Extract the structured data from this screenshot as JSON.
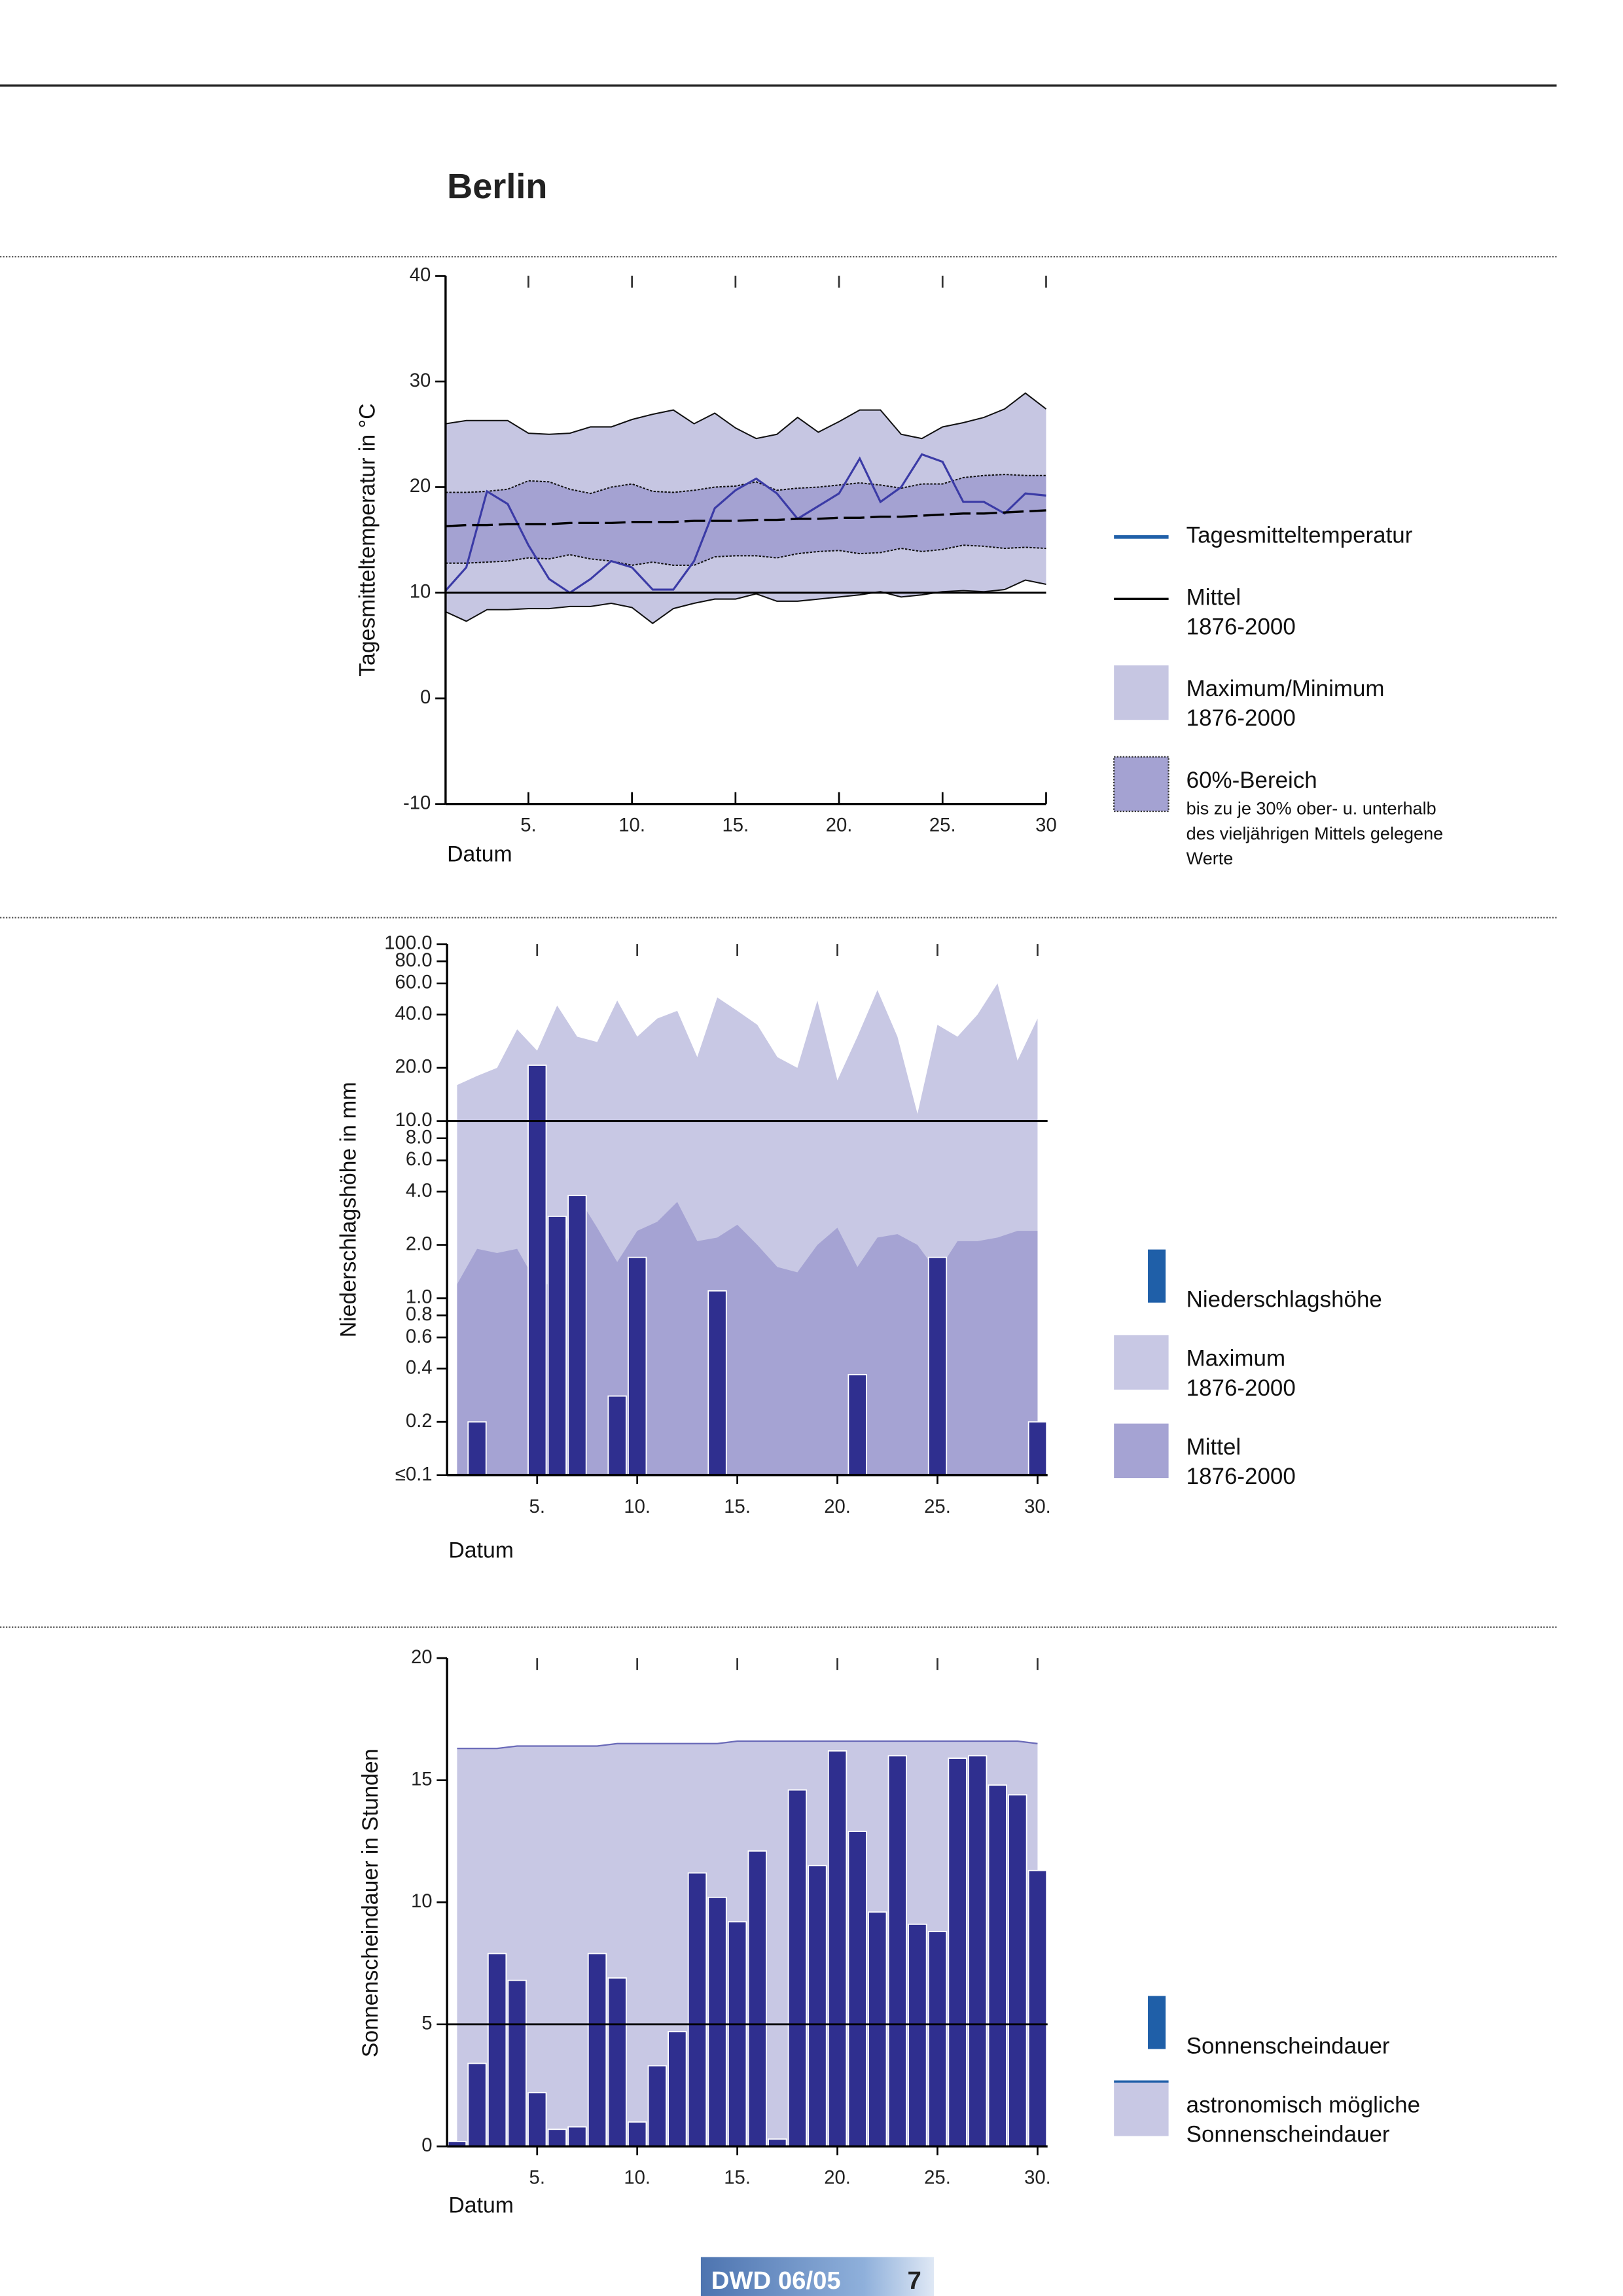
{
  "title": "Berlin",
  "footer": {
    "label": "DWD 06/05",
    "page": "7"
  },
  "chart_data": [
    {
      "type": "line",
      "ylabel": "Tagesmitteltemperatur in °C",
      "xlabel": "Datum",
      "x": [
        1,
        2,
        3,
        4,
        5,
        6,
        7,
        8,
        9,
        10,
        11,
        12,
        13,
        14,
        15,
        16,
        17,
        18,
        19,
        20,
        21,
        22,
        23,
        24,
        25,
        26,
        27,
        28,
        29,
        30
      ],
      "xlim": [
        1,
        30
      ],
      "xticks": [
        {
          "value": 5,
          "label": "5."
        },
        {
          "value": 10,
          "label": "10."
        },
        {
          "value": 15,
          "label": "15."
        },
        {
          "value": 20,
          "label": "20."
        },
        {
          "value": 25,
          "label": "25."
        },
        30
      ],
      "ylim": [
        -10,
        40
      ],
      "yticks": [
        -10,
        0,
        10,
        20,
        30,
        40
      ],
      "hline": 10,
      "series": [
        {
          "name": "Tagesmitteltemperatur",
          "style": "line",
          "color": "#3b3ba6",
          "values": [
            10.2,
            12.4,
            19.6,
            18.4,
            14.5,
            11.3,
            10.0,
            11.3,
            13.0,
            12.4,
            10.3,
            10.3,
            13.0,
            18.0,
            19.7,
            20.8,
            19.4,
            17.0,
            18.2,
            19.4,
            22.7,
            18.6,
            20.0,
            23.1,
            22.4,
            18.6,
            18.6,
            17.5,
            19.4,
            19.2
          ]
        },
        {
          "name": "Mittel\n1876-2000",
          "style": "line",
          "color": "#000000",
          "values": [
            16.3,
            16.4,
            16.4,
            16.5,
            16.5,
            16.5,
            16.6,
            16.6,
            16.6,
            16.7,
            16.7,
            16.7,
            16.8,
            16.8,
            16.8,
            16.9,
            16.9,
            17.0,
            17.0,
            17.1,
            17.1,
            17.2,
            17.2,
            17.3,
            17.4,
            17.5,
            17.5,
            17.6,
            17.7,
            17.8
          ]
        },
        {
          "name": "Maximum/Minimum\n1876-2000",
          "style": "band",
          "color": "#c6c6e2",
          "upper": [
            26.0,
            26.3,
            26.3,
            26.3,
            25.1,
            25.0,
            25.1,
            25.7,
            25.7,
            26.4,
            26.9,
            27.3,
            26.0,
            27.0,
            25.6,
            24.6,
            25.0,
            26.6,
            25.2,
            26.2,
            27.3,
            27.3,
            25.0,
            24.6,
            25.7,
            26.1,
            26.6,
            27.4,
            28.9,
            27.4
          ],
          "lower": [
            8.2,
            7.3,
            8.4,
            8.4,
            8.5,
            8.5,
            8.7,
            8.7,
            9.0,
            8.6,
            7.1,
            8.5,
            9.0,
            9.4,
            9.4,
            9.9,
            9.2,
            9.2,
            9.4,
            9.6,
            9.8,
            10.1,
            9.6,
            9.8,
            10.1,
            10.2,
            10.1,
            10.3,
            11.2,
            10.8
          ]
        },
        {
          "name": "60%-Bereich",
          "note": "bis zu je 30% ober- u. unterhalb\ndes vieljährigen Mittels gelegene\nWerte",
          "style": "band",
          "color": "#a4a2d2",
          "upper": [
            19.5,
            19.5,
            19.6,
            19.8,
            20.6,
            20.5,
            19.8,
            19.4,
            20.0,
            20.3,
            19.6,
            19.5,
            19.7,
            20.0,
            20.1,
            20.5,
            19.7,
            19.9,
            20.0,
            20.2,
            20.4,
            20.2,
            19.9,
            20.3,
            20.3,
            20.9,
            21.1,
            21.2,
            21.1,
            21.1
          ],
          "lower": [
            12.8,
            12.8,
            12.9,
            13.0,
            13.3,
            13.2,
            13.6,
            13.2,
            13.0,
            12.6,
            12.9,
            12.6,
            12.6,
            13.4,
            13.5,
            13.5,
            13.3,
            13.7,
            13.9,
            14.0,
            13.7,
            13.8,
            14.2,
            13.9,
            14.1,
            14.5,
            14.4,
            14.2,
            14.3,
            14.2
          ]
        }
      ]
    },
    {
      "type": "bar",
      "log": true,
      "ylabel": "Niederschlagshöhe in mm",
      "xlabel": "Datum",
      "categories": [
        null,
        null,
        null,
        null,
        "5.",
        null,
        null,
        null,
        null,
        "10.",
        null,
        null,
        null,
        null,
        "15.",
        null,
        null,
        null,
        null,
        "20.",
        null,
        null,
        null,
        null,
        "25.",
        null,
        null,
        null,
        null,
        "30."
      ],
      "ylim": [
        0.1,
        100
      ],
      "yticks": [
        {
          "value": 100,
          "label": "100.0"
        },
        {
          "value": 80,
          "label": "80.0"
        },
        {
          "value": 60,
          "label": "60.0"
        },
        {
          "value": 40,
          "label": "40.0"
        },
        {
          "value": 20,
          "label": "20.0"
        },
        {
          "value": 10,
          "label": "10.0"
        },
        {
          "value": 8,
          "label": "8.0"
        },
        {
          "value": 6,
          "label": "6.0"
        },
        {
          "value": 4,
          "label": "4.0"
        },
        {
          "value": 2,
          "label": "2.0"
        },
        {
          "value": 1,
          "label": "1.0"
        },
        0.8,
        0.6,
        0.4,
        0.2,
        {
          "value": 0.1,
          "label": "≤0.1"
        }
      ],
      "hline": 10,
      "series": [
        {
          "name": "Niederschlagshöhe",
          "style": "bar",
          "color": "#2f2f8f",
          "values": [
            0,
            0.2,
            0,
            0,
            20.7,
            2.9,
            3.8,
            0,
            0.28,
            1.7,
            0,
            0,
            0,
            1.1,
            0,
            0,
            0,
            0,
            0,
            0,
            0.37,
            0,
            0,
            0,
            1.7,
            0,
            0,
            0,
            0,
            0.2
          ]
        },
        {
          "name": "Maximum\n1876-2000",
          "style": "area",
          "color": "#c8c8e4",
          "values": [
            16,
            18,
            20,
            33,
            25,
            45,
            30,
            28,
            48,
            30,
            38,
            42,
            23,
            50,
            42,
            35,
            23,
            20,
            48,
            17,
            30,
            55,
            30,
            11,
            35,
            30,
            40,
            60,
            22,
            38
          ]
        },
        {
          "name": "Mittel\n1876-2000",
          "style": "area",
          "color": "#a5a3d3",
          "values": [
            1.2,
            1.9,
            1.8,
            1.9,
            1.2,
            1.2,
            3.8,
            2.5,
            1.6,
            2.4,
            2.7,
            3.5,
            2.1,
            2.2,
            2.6,
            2.0,
            1.5,
            1.4,
            2.0,
            2.5,
            1.5,
            2.2,
            2.3,
            2.0,
            1.4,
            2.1,
            2.1,
            2.2,
            2.4,
            2.4
          ]
        }
      ]
    },
    {
      "type": "bar",
      "ylabel": "Sonnenscheindauer in Stunden",
      "xlabel": "Datum",
      "categories": [
        null,
        null,
        null,
        null,
        "5.",
        null,
        null,
        null,
        null,
        "10.",
        null,
        null,
        null,
        null,
        "15.",
        null,
        null,
        null,
        null,
        "20.",
        null,
        null,
        null,
        null,
        "25.",
        null,
        null,
        null,
        null,
        "30."
      ],
      "ylim": [
        0,
        20
      ],
      "yticks": [
        0,
        5,
        10,
        15,
        20
      ],
      "hline": 5,
      "series": [
        {
          "name": "Sonnenscheindauer",
          "style": "bar",
          "color": "#2f2f8f",
          "values": [
            0.2,
            3.4,
            7.9,
            6.8,
            2.2,
            0.7,
            0.8,
            7.9,
            6.9,
            1.0,
            3.3,
            4.7,
            11.2,
            10.2,
            9.2,
            12.1,
            0.3,
            14.6,
            11.5,
            16.2,
            12.9,
            9.6,
            16.0,
            9.1,
            8.8,
            15.9,
            16.0,
            14.8,
            14.4,
            11.3
          ]
        },
        {
          "name": "astronomisch mögliche\nSonnenscheindauer",
          "style": "area",
          "color": "#c8c8e4",
          "edge_color": "#6a6ab8",
          "values": [
            16.3,
            16.3,
            16.3,
            16.4,
            16.4,
            16.4,
            16.4,
            16.4,
            16.5,
            16.5,
            16.5,
            16.5,
            16.5,
            16.5,
            16.6,
            16.6,
            16.6,
            16.6,
            16.6,
            16.6,
            16.6,
            16.6,
            16.6,
            16.6,
            16.6,
            16.6,
            16.6,
            16.6,
            16.6,
            16.5
          ]
        }
      ]
    }
  ]
}
